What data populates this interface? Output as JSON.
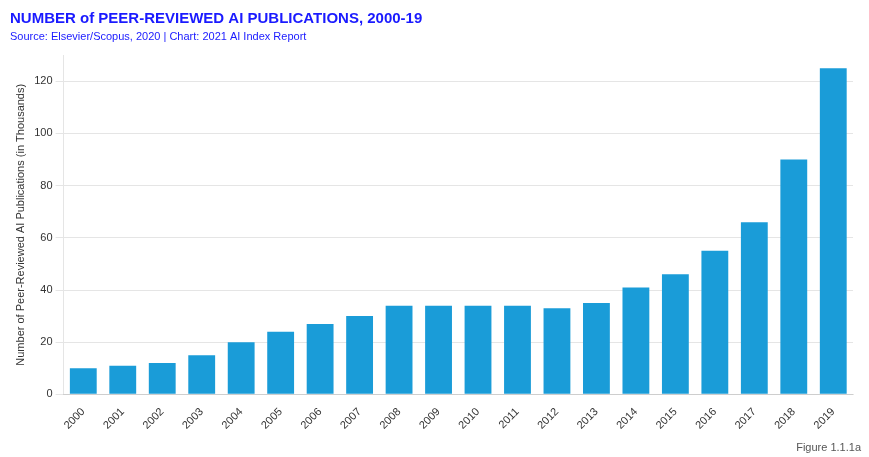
{
  "chart_data": {
    "type": "bar",
    "title": "NUMBER of PEER-REVIEWED AI PUBLICATIONS, 2000-19",
    "subtitle": "Source: Elsevier/Scopus, 2020 | Chart: 2021 AI Index Report",
    "ylabel": "Number of Peer-Reviewed AI Publications (in Thousands)",
    "annotations": [
      "Figure 1.1.1a"
    ],
    "categories": [
      "2000",
      "2001",
      "2002",
      "2003",
      "2004",
      "2005",
      "2006",
      "2007",
      "2008",
      "2009",
      "2010",
      "2011",
      "2012",
      "2013",
      "2014",
      "2015",
      "2016",
      "2017",
      "2018",
      "2019"
    ],
    "values": [
      10,
      11,
      12,
      15,
      20,
      24,
      27,
      30,
      34,
      34,
      34,
      34,
      33,
      35,
      41,
      46,
      55,
      66,
      90,
      125
    ],
    "color": "#1a9cd8",
    "ylim": [
      0,
      130
    ],
    "yticks": [
      0,
      20,
      40,
      60,
      80,
      100,
      120
    ],
    "grid": true
  }
}
